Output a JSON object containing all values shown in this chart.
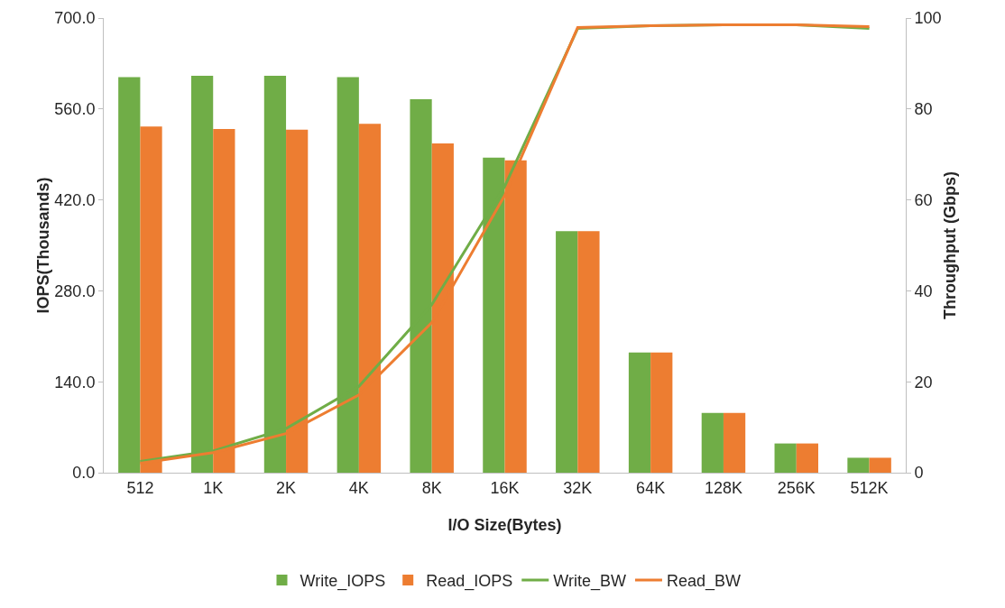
{
  "chart_data": {
    "type": "bar",
    "xlabel": "I/O Size(Bytes)",
    "ylabel": "IOPS(Thousands)",
    "y2label": "Throughput (Gbps)",
    "categories": [
      "512",
      "1K",
      "2K",
      "4K",
      "8K",
      "16K",
      "32K",
      "64K",
      "128K",
      "256K",
      "512K"
    ],
    "series": [
      {
        "name": "Write_IOPS",
        "color": "#70ad47",
        "values": [
          609,
          611,
          611,
          609,
          575,
          485,
          372,
          185,
          92,
          45,
          23
        ]
      },
      {
        "name": "Read_IOPS",
        "color": "#ed7d31",
        "values": [
          533,
          529,
          528,
          537,
          507,
          481,
          372,
          185,
          92,
          45,
          23
        ]
      },
      {
        "name": "Write_BW",
        "type": "line",
        "axis": "y2",
        "color": "#70ad47",
        "values": [
          2.5,
          4.8,
          9.7,
          19,
          37,
          63,
          97.7,
          98.3,
          98.5,
          98.5,
          97.7
        ]
      },
      {
        "name": "Read_BW",
        "type": "line",
        "axis": "y2",
        "color": "#ed7d31",
        "values": [
          2.1,
          4.4,
          8.6,
          17.1,
          33,
          61,
          97.9,
          98.3,
          98.5,
          98.5,
          98.1
        ]
      }
    ],
    "ylim": [
      0,
      700
    ],
    "yticks": [
      {
        "value": 0,
        "label": "0.0"
      },
      {
        "value": 140,
        "label": "140.0"
      },
      {
        "value": 280,
        "label": "280.0"
      },
      {
        "value": 420,
        "label": "420.0"
      },
      {
        "value": 560,
        "label": "560.0"
      },
      {
        "value": 700,
        "label": "700.0"
      }
    ],
    "y2lim": [
      0,
      100
    ],
    "y2ticks": [
      0,
      20,
      40,
      60,
      80,
      100
    ],
    "grid": false,
    "legend": "bottom",
    "marker": "none",
    "line_style": "solid"
  }
}
